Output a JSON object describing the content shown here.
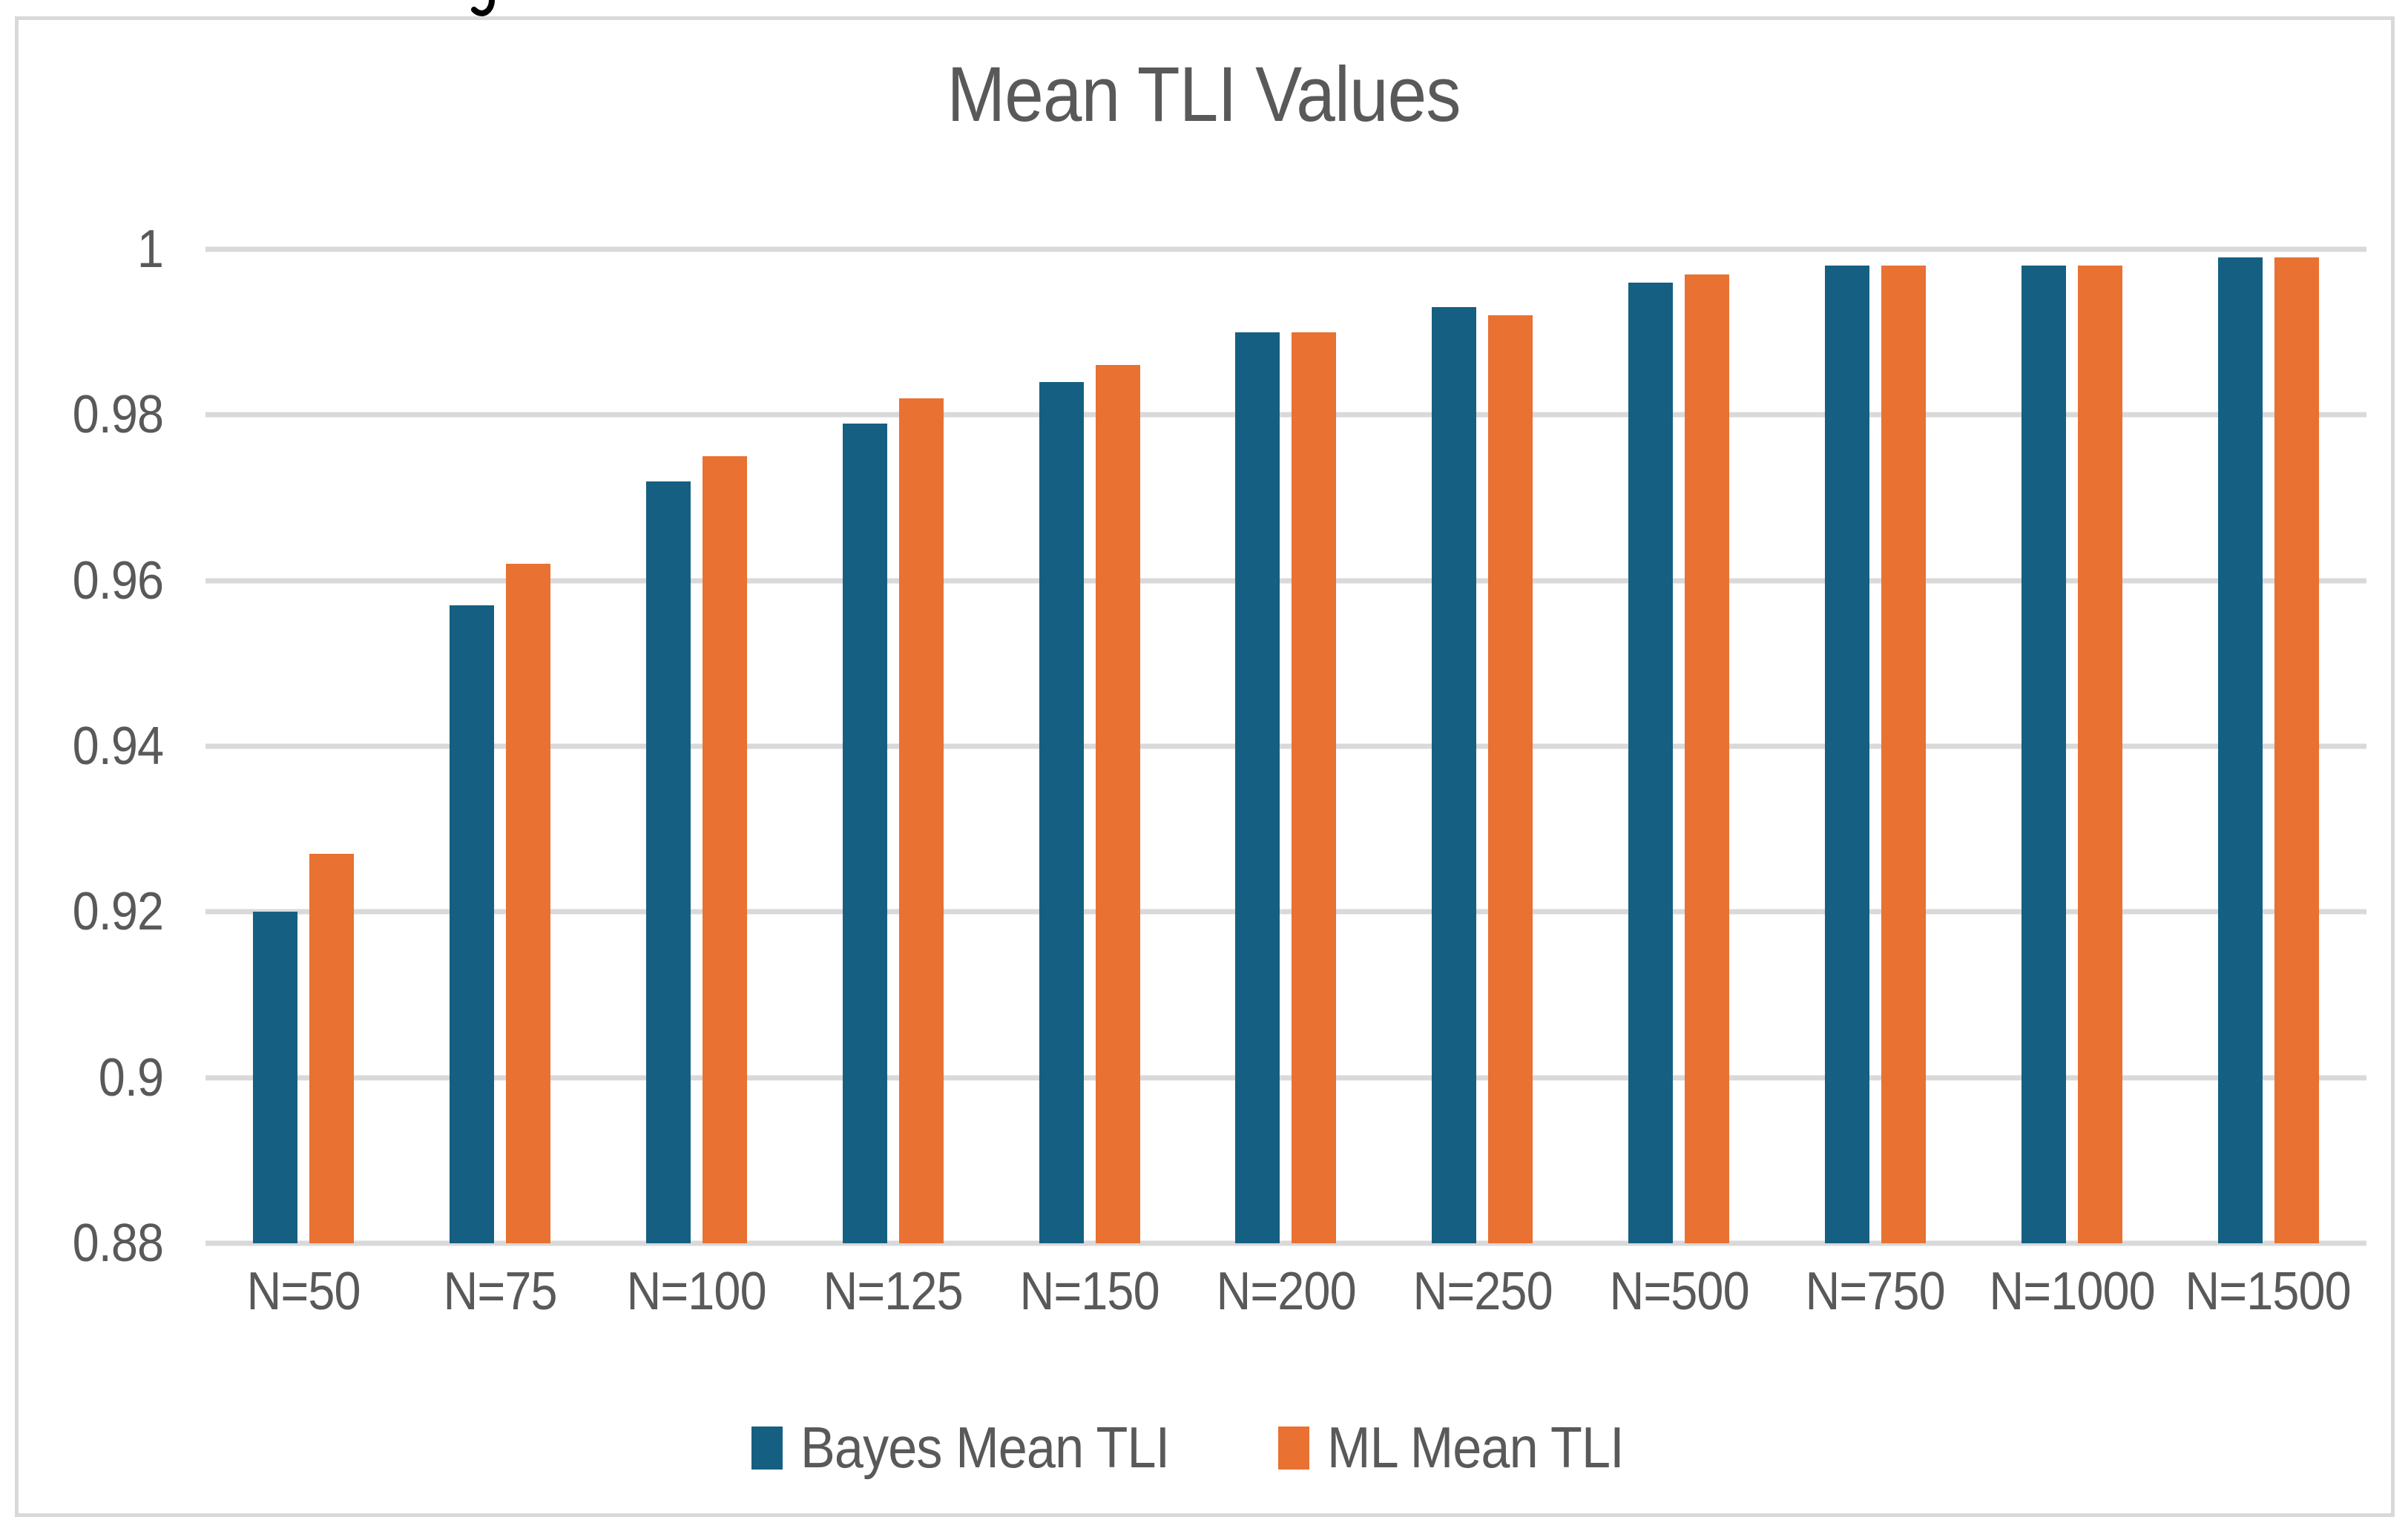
{
  "page": {
    "background": "#ffffff",
    "frame_border_color": "#D9D9D9"
  },
  "decor": {
    "cropped_text_fragment": "partial black descender of a text line cut off at the top edge of the screenshot"
  },
  "chart_data": {
    "type": "bar",
    "title": "Mean TLI Values",
    "categories": [
      "N=50",
      "N=75",
      "N=100",
      "N=125",
      "N=150",
      "N=200",
      "N=250",
      "N=500",
      "N=750",
      "N=1000",
      "N=1500"
    ],
    "series": [
      {
        "name": "Bayes Mean TLI",
        "color": "#156082",
        "values": [
          0.92,
          0.957,
          0.972,
          0.979,
          0.984,
          0.99,
          0.993,
          0.996,
          0.998,
          0.998,
          0.999
        ]
      },
      {
        "name": "ML Mean TLI",
        "color": "#E97132",
        "values": [
          0.927,
          0.962,
          0.975,
          0.982,
          0.986,
          0.99,
          0.992,
          0.997,
          0.998,
          0.998,
          0.999
        ]
      }
    ],
    "ylim": [
      0.88,
      1.0
    ],
    "y_tick_labels": [
      "1",
      "0.98",
      "0.96",
      "0.94",
      "0.92",
      "0.9",
      "0.88"
    ],
    "y_tick_values": [
      1.0,
      0.98,
      0.96,
      0.94,
      0.92,
      0.9,
      0.88
    ],
    "xlabel": "",
    "ylabel": "",
    "grid": true,
    "gridline_color": "#D9D9D9",
    "legend_position": "bottom",
    "title_color": "#595959",
    "axis_text_color": "#595959"
  }
}
